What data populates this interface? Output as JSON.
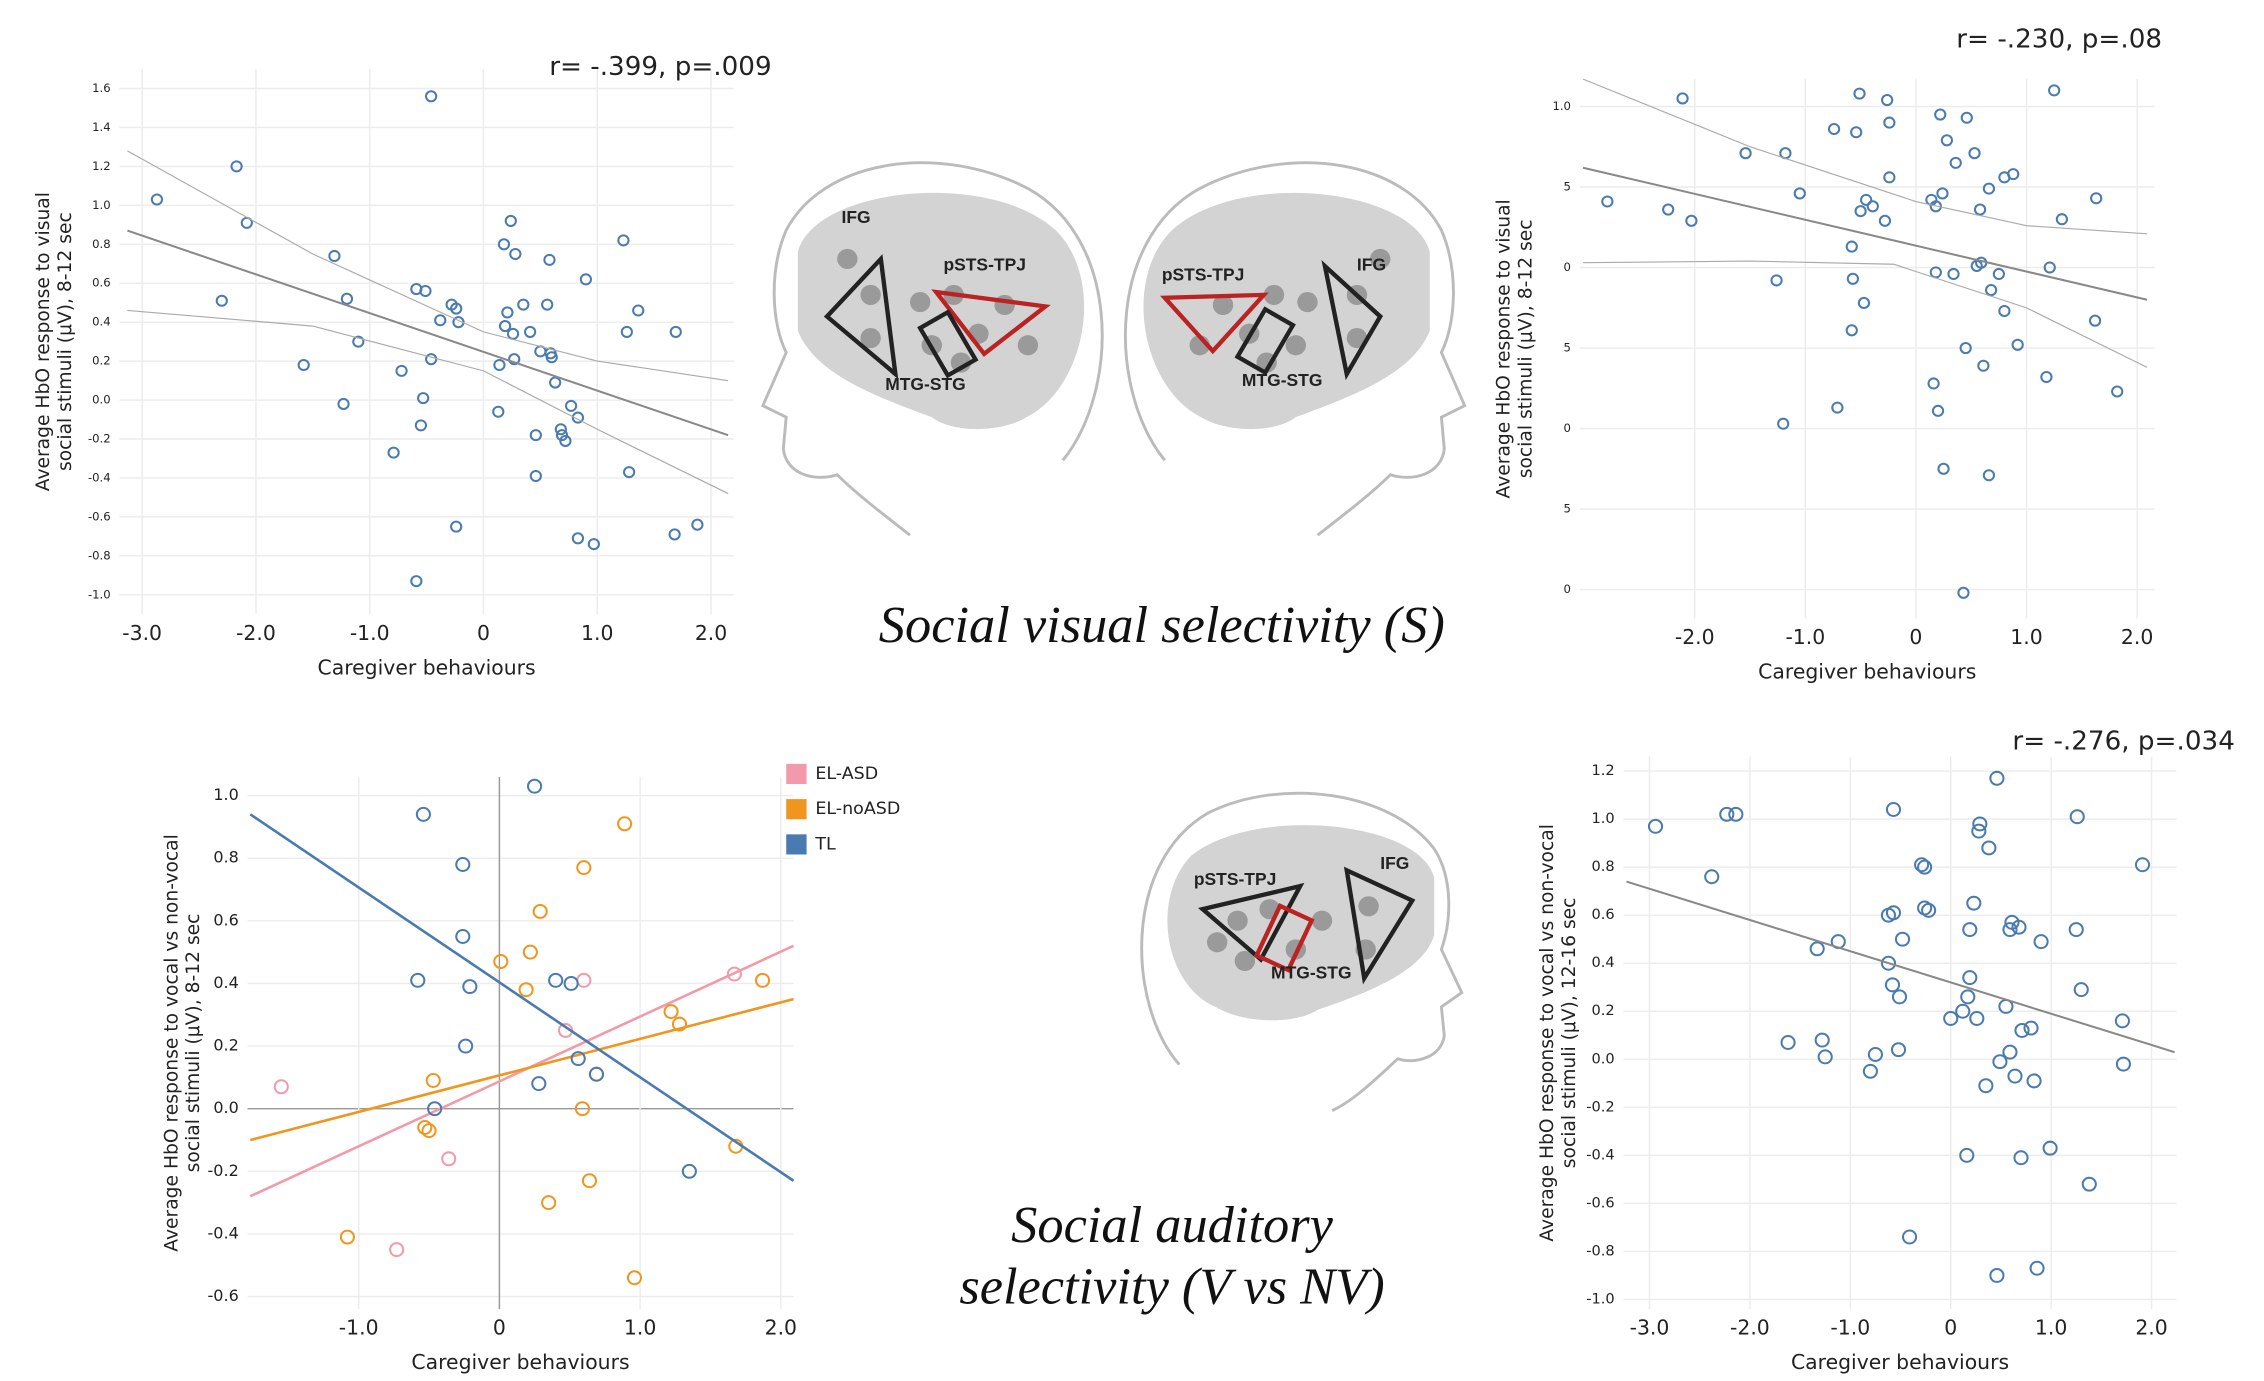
{
  "chart_data": [
    {
      "type": "scatter",
      "title": "r= -.399, p=.009",
      "xlabel": "Caregiver behaviours",
      "ylabel": [
        "Average HbO response to visual",
        "social stimuli (μV), 8-12 sec"
      ],
      "xlim": [
        -3.2,
        2.2
      ],
      "ylim": [
        -1.1,
        1.7
      ],
      "grid": true,
      "xticks": [
        {
          "value": -3,
          "label": "-3.0"
        },
        {
          "value": -2,
          "label": "-2.0"
        },
        {
          "value": -1,
          "label": "-1.0"
        },
        0,
        {
          "value": 1,
          "label": "1.0"
        },
        {
          "value": 2,
          "label": "2.0"
        }
      ],
      "yticks": [
        1.6,
        1.4,
        1.2,
        {
          "value": 1,
          "label": "1.0"
        },
        0.8,
        0.6,
        0.4,
        0.2,
        {
          "value": 0,
          "label": "0.0"
        },
        -0.2,
        -0.4,
        -0.6,
        -0.8,
        {
          "value": -1,
          "label": "-1.0"
        }
      ],
      "series": [
        {
          "color": "#4a7bb0",
          "x": [
            -2.87,
            -2.17,
            -2.08,
            -2.3,
            -1.58,
            -1.31,
            -1.2,
            -1.23,
            -1.1,
            -0.46,
            -0.59,
            -0.51,
            -0.46,
            -0.53,
            -0.55,
            -0.72,
            -0.79,
            -0.59,
            -0.38,
            -0.28,
            -0.24,
            -0.22,
            -0.24,
            0.24,
            0.18,
            0.28,
            0.21,
            0.19,
            0.26,
            0.27,
            0.14,
            0.13,
            0.35,
            0.41,
            0.56,
            0.58,
            0.5,
            0.59,
            0.6,
            0.63,
            0.46,
            0.46,
            0.68,
            0.69,
            0.72,
            0.77,
            0.83,
            0.83,
            0.97,
            0.9,
            1.23,
            1.26,
            1.36,
            1.28,
            1.69,
            1.68,
            1.88
          ],
          "y": [
            1.03,
            1.2,
            0.91,
            0.51,
            0.18,
            0.74,
            0.52,
            -0.02,
            0.3,
            1.56,
            0.57,
            0.56,
            0.21,
            0.01,
            -0.13,
            0.15,
            -0.27,
            -0.93,
            0.41,
            0.49,
            0.47,
            0.4,
            -0.65,
            0.92,
            0.8,
            0.75,
            0.45,
            0.38,
            0.34,
            0.21,
            0.18,
            -0.06,
            0.49,
            0.35,
            0.49,
            0.72,
            0.25,
            0.24,
            0.22,
            0.09,
            -0.18,
            -0.39,
            -0.15,
            -0.18,
            -0.21,
            -0.03,
            -0.09,
            -0.71,
            -0.74,
            0.62,
            0.82,
            0.35,
            0.46,
            -0.37,
            0.35,
            -0.69,
            -0.64
          ],
          "fit": {
            "x": [
              -3.13,
              2.15
            ],
            "y": [
              0.87,
              -0.18
            ]
          },
          "ci_upper": {
            "x": [
              -3.13,
              -1.5,
              0,
              1,
              2.15
            ],
            "y": [
              1.28,
              0.75,
              0.35,
              0.2,
              0.1
            ]
          },
          "ci_lower": {
            "x": [
              -3.13,
              -1.5,
              0,
              1,
              2.15
            ],
            "y": [
              0.46,
              0.38,
              0.15,
              -0.15,
              -0.48
            ]
          }
        }
      ]
    },
    {
      "type": "scatter",
      "title": "r= -.230, p=.08",
      "xlabel": "Caregiver behaviours",
      "ylabel": [
        "Average HbO response to visual",
        "social stimuli (μV), 8-12 sec"
      ],
      "xlim": [
        -3.04,
        2.16
      ],
      "ylim": [
        -2.18,
        1.17
      ],
      "grid": true,
      "xticks": [
        {
          "value": -2,
          "label": "-2.0"
        },
        {
          "value": -1,
          "label": "-1.0"
        },
        0,
        {
          "value": 1,
          "label": "1.0"
        },
        {
          "value": 2,
          "label": "2.0"
        }
      ],
      "yticks": [
        {
          "value": 1,
          "label": "1.0"
        },
        {
          "value": 0.5,
          "label": "5"
        },
        0,
        {
          "value": -0.5,
          "label": "5"
        },
        {
          "value": -1,
          "label": "0"
        },
        {
          "value": -1.5,
          "label": "5"
        },
        {
          "value": -2,
          "label": "0"
        }
      ],
      "series": [
        {
          "color": "#4a7bb0",
          "x": [
            -2.79,
            -2.11,
            -2.24,
            -2.03,
            -1.54,
            -1.18,
            -1.05,
            -1.26,
            -1.2,
            -0.74,
            -0.51,
            -0.54,
            -0.5,
            -0.45,
            -0.39,
            -0.58,
            -0.57,
            -0.47,
            -0.58,
            -0.71,
            -0.26,
            -0.24,
            -0.24,
            -0.28,
            0.22,
            0.28,
            0.46,
            0.36,
            0.53,
            0.24,
            0.14,
            0.18,
            0.58,
            0.66,
            0.8,
            0.88,
            0.18,
            0.34,
            0.55,
            0.59,
            0.75,
            0.68,
            0.8,
            0.92,
            0.45,
            0.61,
            0.16,
            0.2,
            0.25,
            0.66,
            0.43,
            1.25,
            1.32,
            1.21,
            1.18,
            1.63,
            1.62,
            1.82
          ],
          "y": [
            0.41,
            1.05,
            0.36,
            0.29,
            0.71,
            0.71,
            0.46,
            -0.08,
            -0.97,
            0.86,
            1.08,
            0.84,
            0.35,
            0.42,
            0.38,
            0.13,
            -0.07,
            -0.22,
            -0.39,
            -0.87,
            1.04,
            0.9,
            0.56,
            0.29,
            0.95,
            0.79,
            0.93,
            0.65,
            0.71,
            0.46,
            0.42,
            0.38,
            0.36,
            0.49,
            0.56,
            0.58,
            -0.03,
            -0.04,
            0.01,
            0.03,
            -0.04,
            -0.14,
            -0.27,
            -0.48,
            -0.5,
            -0.61,
            -0.72,
            -0.89,
            -1.25,
            -1.29,
            -2.02,
            1.1,
            0.3,
            0,
            -0.68,
            0.43,
            -0.33,
            -0.77
          ],
          "fit": {
            "x": [
              -3.01,
              2.09
            ],
            "y": [
              0.62,
              -0.2
            ]
          },
          "ci_upper": {
            "x": [
              -3.01,
              -1.5,
              0,
              1,
              2.09
            ],
            "y": [
              1.17,
              0.75,
              0.41,
              0.26,
              0.21
            ]
          },
          "ci_lower": {
            "x": [
              -3.01,
              -1.5,
              -0.2,
              1,
              2.09
            ],
            "y": [
              0.03,
              0.04,
              0.02,
              -0.25,
              -0.62
            ]
          }
        }
      ]
    },
    {
      "type": "scatter",
      "xlabel": "Caregiver behaviours",
      "ylabel": [
        "Average HbO response to vocal vs non-vocal",
        "social stimuli (μV), 8-12 sec"
      ],
      "xlim": [
        -1.79,
        2.09
      ],
      "ylim": [
        -0.64,
        1.06
      ],
      "grid": true,
      "zero_lines": true,
      "xticks": [
        {
          "value": -1,
          "label": "-1.0"
        },
        0,
        {
          "value": 1,
          "label": "1.0"
        },
        {
          "value": 2,
          "label": "2.0"
        }
      ],
      "yticks": [
        {
          "value": 1,
          "label": "1.0"
        },
        0.8,
        0.6,
        0.4,
        0.2,
        {
          "value": 0,
          "label": "0.0"
        },
        -0.2,
        -0.4,
        -0.6
      ],
      "series": [
        {
          "name": "EL-ASD",
          "color": "#f29aab",
          "x": [
            -1.55,
            -0.73,
            -0.36,
            0.47,
            0.6,
            1.67
          ],
          "y": [
            0.07,
            -0.45,
            -0.16,
            0.25,
            0.41,
            0.43
          ],
          "fit": {
            "x": [
              -1.77,
              2.09
            ],
            "y": [
              -0.28,
              0.52
            ]
          }
        },
        {
          "name": "EL-noASD",
          "color": "#f0961e",
          "x": [
            0.89,
            0.6,
            0.29,
            0.01,
            0.22,
            0.19,
            -0.47,
            -0.53,
            -0.5,
            -1.08,
            0.35,
            0.64,
            0.59,
            0.69,
            1.22,
            1.28,
            1.87,
            1.68,
            0.96
          ],
          "y": [
            0.91,
            0.77,
            0.63,
            0.47,
            0.5,
            0.38,
            0.09,
            -0.06,
            -0.07,
            -0.41,
            -0.3,
            -0.23,
            0,
            0.11,
            0.31,
            0.27,
            0.41,
            -0.12,
            -0.54
          ],
          "fit": {
            "x": [
              -1.77,
              2.09
            ],
            "y": [
              -0.1,
              0.35
            ]
          }
        },
        {
          "name": "TL",
          "color": "#4a7bb0",
          "x": [
            -0.54,
            -0.26,
            -0.26,
            -0.21,
            -0.58,
            -0.24,
            -0.46,
            0.25,
            0.4,
            0.51,
            0.56,
            0.28,
            0.69,
            1.35
          ],
          "y": [
            0.94,
            0.78,
            0.55,
            0.39,
            0.41,
            0.2,
            0,
            1.03,
            0.41,
            0.4,
            0.16,
            0.08,
            0.11,
            -0.2
          ],
          "fit": {
            "x": [
              -1.77,
              2.09
            ],
            "y": [
              0.94,
              -0.23
            ]
          }
        }
      ]
    },
    {
      "type": "scatter",
      "title": "r= -.276, p=.034",
      "xlabel": "Caregiver behaviours",
      "ylabel": [
        "Average HbO response to vocal vs non-vocal",
        "social stimuli (μV), 12-16 sec"
      ],
      "xlim": [
        -3.26,
        2.25
      ],
      "ylim": [
        -1.04,
        1.26
      ],
      "grid": true,
      "xticks": [
        {
          "value": -3,
          "label": "-3.0"
        },
        {
          "value": -2,
          "label": "-2.0"
        },
        {
          "value": -1,
          "label": "-1.0"
        },
        0,
        {
          "value": 1,
          "label": "1.0"
        },
        {
          "value": 2,
          "label": "2.0"
        }
      ],
      "yticks": [
        1.2,
        {
          "value": 1,
          "label": "1.0"
        },
        0.8,
        0.6,
        0.4,
        0.2,
        {
          "value": 0,
          "label": "0.0"
        },
        -0.2,
        -0.4,
        -0.6,
        -0.8,
        {
          "value": -1,
          "label": "-1.0"
        }
      ],
      "series": [
        {
          "color": "#4a7bb0",
          "x": [
            -2.94,
            -2.23,
            -2.14,
            -2.38,
            -1.33,
            -1.12,
            -1.62,
            -1.28,
            -1.25,
            -0.8,
            -0.75,
            -0.57,
            -0.62,
            -0.57,
            -0.48,
            -0.62,
            -0.58,
            -0.51,
            -0.52,
            -0.41,
            -0.29,
            -0.26,
            -0.26,
            -0.22,
            0.29,
            0.28,
            0.38,
            0.46,
            0.23,
            0.19,
            0.19,
            0.17,
            0.12,
            0.26,
            0,
            0.61,
            0.59,
            0.68,
            0.9,
            0.55,
            0.59,
            0.49,
            0.64,
            0.71,
            0.8,
            0.83,
            0.35,
            0.16,
            0.7,
            0.99,
            0.46,
            0.86,
            1.26,
            1.25,
            1.3,
            1.38,
            1.71,
            1.72,
            1.91
          ],
          "y": [
            0.97,
            1.02,
            1.02,
            0.76,
            0.46,
            0.49,
            0.07,
            0.08,
            0.01,
            -0.05,
            0.02,
            1.04,
            0.6,
            0.61,
            0.5,
            0.4,
            0.31,
            0.26,
            0.04,
            -0.74,
            0.81,
            0.8,
            0.63,
            0.62,
            0.98,
            0.95,
            0.88,
            1.17,
            0.65,
            0.54,
            0.34,
            0.26,
            0.2,
            0.17,
            0.17,
            0.57,
            0.54,
            0.55,
            0.49,
            0.22,
            0.03,
            -0.01,
            -0.07,
            0.12,
            0.13,
            -0.09,
            -0.11,
            -0.4,
            -0.41,
            -0.37,
            -0.9,
            -0.87,
            1.01,
            0.54,
            0.29,
            -0.52,
            0.16,
            -0.02,
            0.81
          ],
          "fit": {
            "x": [
              -3.23,
              2.23
            ],
            "y": [
              0.74,
              0.03
            ]
          }
        }
      ]
    }
  ],
  "diagrams": [
    {
      "labels": [
        "IFG",
        "pSTS-TPJ",
        "MTG-STG"
      ]
    },
    {
      "labels": [
        "IFG",
        "pSTS-TPJ",
        "MTG-STG"
      ]
    },
    {
      "labels": [
        "IFG",
        "pSTS-TPJ",
        "MTG-STG"
      ]
    }
  ],
  "captions": {
    "visual": "Social visual selectivity (S)",
    "auditory": [
      "Social auditory",
      "selectivity (V vs NV)"
    ]
  }
}
